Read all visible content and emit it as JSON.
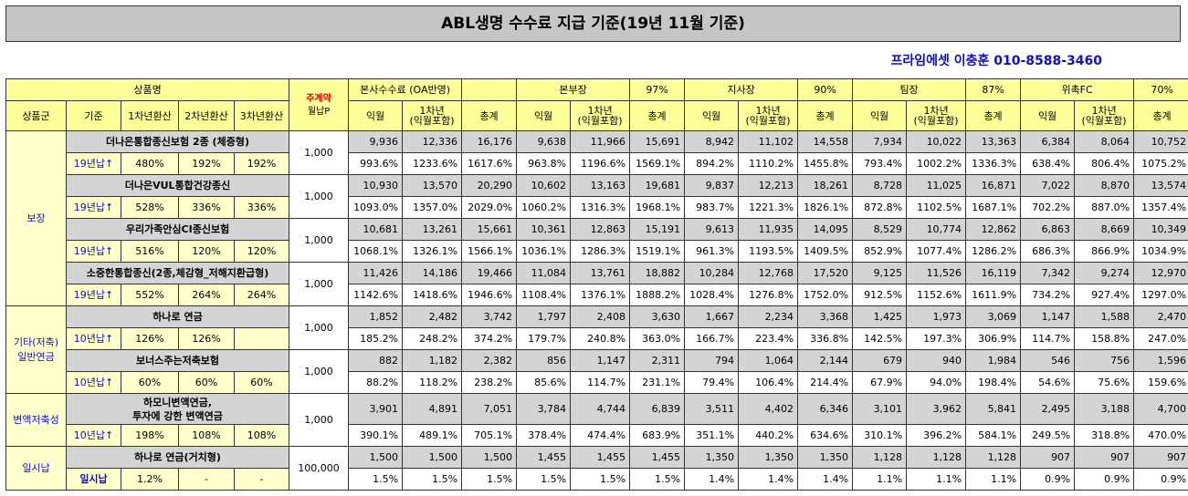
{
  "title": "ABL생명 수수료 지급 기준(19년 11월 기준)",
  "contact": "프라임에셋 이충훈 010-8588-3460",
  "header": {
    "product_name": "상품명",
    "main_contract": "주계약",
    "monthly_premium": "월납P",
    "group": "상품군",
    "standard": "기준",
    "y1": "1차년환산",
    "y2": "2차년환산",
    "y3": "3차년환산",
    "sections": [
      {
        "name": "본사수수료 (OA반영)",
        "pct": ""
      },
      {
        "name": "본부장",
        "pct": "97%"
      },
      {
        "name": "지사장",
        "pct": "90%"
      },
      {
        "name": "팀장",
        "pct": "87%"
      },
      {
        "name": "위촉FC",
        "pct": "70%"
      }
    ],
    "sub_month": "익월",
    "sub_year1_a": "1차년",
    "sub_year1_b": "(익월포함)",
    "sub_total": "총계"
  },
  "groups": [
    {
      "label": "보장",
      "rows": 4
    },
    {
      "label": "기타(저축)\n일반연금",
      "rows": 2
    },
    {
      "label": "변액저축성",
      "rows": 1
    },
    {
      "label": "일시납",
      "rows": 1
    }
  ],
  "products": [
    {
      "name": "더나은통합종신보험 2종 (체증형)",
      "std": "19년납↑",
      "y1": "480%",
      "y2": "192%",
      "y3": "192%",
      "prem": "1,000",
      "amounts": [
        "9,936",
        "12,336",
        "16,176",
        "9,638",
        "11,966",
        "15,691",
        "8,942",
        "11,102",
        "14,558",
        "7,934",
        "10,022",
        "13,363",
        "6,384",
        "8,064",
        "10,752"
      ],
      "rates": [
        "993.6%",
        "1233.6%",
        "1617.6%",
        "963.8%",
        "1196.6%",
        "1569.1%",
        "894.2%",
        "1110.2%",
        "1455.8%",
        "793.4%",
        "1002.2%",
        "1336.3%",
        "638.4%",
        "806.4%",
        "1075.2%"
      ]
    },
    {
      "name": "더나은VUL통합건강종신",
      "std": "19년납↑",
      "y1": "528%",
      "y2": "336%",
      "y3": "336%",
      "prem": "1,000",
      "amounts": [
        "10,930",
        "13,570",
        "20,290",
        "10,602",
        "13,163",
        "19,681",
        "9,837",
        "12,213",
        "18,261",
        "8,728",
        "11,025",
        "16,871",
        "7,022",
        "8,870",
        "13,574"
      ],
      "rates": [
        "1093.0%",
        "1357.0%",
        "2029.0%",
        "1060.2%",
        "1316.3%",
        "1968.1%",
        "983.7%",
        "1221.3%",
        "1826.1%",
        "872.8%",
        "1102.5%",
        "1687.1%",
        "702.2%",
        "887.0%",
        "1357.4%"
      ]
    },
    {
      "name": "우리가족안심CI종신보험",
      "std": "19년납↑",
      "y1": "516%",
      "y2": "120%",
      "y3": "120%",
      "prem": "1,000",
      "amounts": [
        "10,681",
        "13,261",
        "15,661",
        "10,361",
        "12,863",
        "15,191",
        "9,613",
        "11,935",
        "14,095",
        "8,529",
        "10,774",
        "12,862",
        "6,863",
        "8,669",
        "10,349"
      ],
      "rates": [
        "1068.1%",
        "1326.1%",
        "1566.1%",
        "1036.1%",
        "1286.3%",
        "1519.1%",
        "961.3%",
        "1193.5%",
        "1409.5%",
        "852.9%",
        "1077.4%",
        "1286.2%",
        "686.3%",
        "866.9%",
        "1034.9%"
      ]
    },
    {
      "name": "소중한통합종신(2종,체감형_저해지환급형)",
      "std": "19년납↑",
      "y1": "552%",
      "y2": "264%",
      "y3": "264%",
      "prem": "1,000",
      "amounts": [
        "11,426",
        "14,186",
        "19,466",
        "11,084",
        "13,761",
        "18,882",
        "10,284",
        "12,768",
        "17,520",
        "9,125",
        "11,526",
        "16,119",
        "7,342",
        "9,274",
        "12,970"
      ],
      "rates": [
        "1142.6%",
        "1418.6%",
        "1946.6%",
        "1108.4%",
        "1376.1%",
        "1888.2%",
        "1028.4%",
        "1276.8%",
        "1752.0%",
        "912.5%",
        "1152.6%",
        "1611.9%",
        "734.2%",
        "927.4%",
        "1297.0%"
      ]
    },
    {
      "name": "하나로 연금",
      "std": "10년납↑",
      "y1": "126%",
      "y2": "126%",
      "y3": "",
      "prem": "1,000",
      "amounts": [
        "1,852",
        "2,482",
        "3,742",
        "1,797",
        "2,408",
        "3,630",
        "1,667",
        "2,234",
        "3,368",
        "1,425",
        "1,973",
        "3,069",
        "1,147",
        "1,588",
        "2,470"
      ],
      "rates": [
        "185.2%",
        "248.2%",
        "374.2%",
        "179.7%",
        "240.8%",
        "363.0%",
        "166.7%",
        "223.4%",
        "336.8%",
        "142.5%",
        "197.3%",
        "306.9%",
        "114.7%",
        "158.8%",
        "247.0%"
      ]
    },
    {
      "name": "보너스주는저축보험",
      "std": "10년납↑",
      "y1": "60%",
      "y2": "60%",
      "y3": "60%",
      "prem": "1,000",
      "amounts": [
        "882",
        "1,182",
        "2,382",
        "856",
        "1,147",
        "2,311",
        "794",
        "1,064",
        "2,144",
        "679",
        "940",
        "1,984",
        "546",
        "756",
        "1,596"
      ],
      "rates": [
        "88.2%",
        "118.2%",
        "238.2%",
        "85.6%",
        "114.7%",
        "231.1%",
        "79.4%",
        "106.4%",
        "214.4%",
        "67.9%",
        "94.0%",
        "198.4%",
        "54.6%",
        "75.6%",
        "159.6%"
      ]
    },
    {
      "name": "하모니변액연금,\n투자에 강한 변액연금",
      "std": "10년납↑",
      "y1": "198%",
      "y2": "108%",
      "y3": "108%",
      "prem": "1,000",
      "amounts": [
        "3,901",
        "4,891",
        "7,051",
        "3,784",
        "4,744",
        "6,839",
        "3,511",
        "4,402",
        "6,346",
        "3,101",
        "3,962",
        "5,841",
        "2,495",
        "3,188",
        "4,700"
      ],
      "rates": [
        "390.1%",
        "489.1%",
        "705.1%",
        "378.4%",
        "474.4%",
        "683.9%",
        "351.1%",
        "440.2%",
        "634.6%",
        "310.1%",
        "396.2%",
        "584.1%",
        "249.5%",
        "318.8%",
        "470.0%"
      ]
    },
    {
      "name": "하나로 연금(거치형)",
      "std": "일시납",
      "y1": "1.2%",
      "y2": "-",
      "y3": "-",
      "prem": "100,000",
      "amounts": [
        "1,500",
        "1,500",
        "1,500",
        "1,455",
        "1,455",
        "1,455",
        "1,350",
        "1,350",
        "1,350",
        "1,128",
        "1,128",
        "1,128",
        "907",
        "907",
        "907"
      ],
      "rates": [
        "1.5%",
        "1.5%",
        "1.5%",
        "1.5%",
        "1.5%",
        "1.5%",
        "1.4%",
        "1.4%",
        "1.4%",
        "1.1%",
        "1.1%",
        "1.1%",
        "0.9%",
        "0.9%",
        "0.9%"
      ]
    }
  ]
}
